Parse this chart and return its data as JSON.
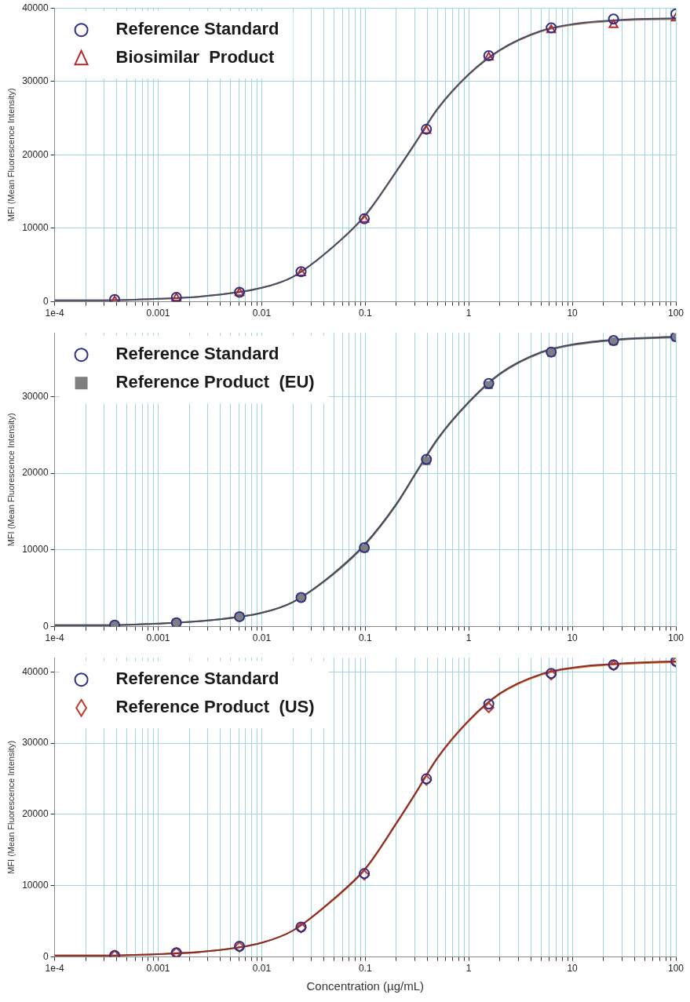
{
  "chart_data": [
    {
      "type": "scatter",
      "ylabel": "MFI (Mean Fluorescence Intensity)",
      "xlim": [
        0.0001,
        100
      ],
      "ylim": [
        0,
        40000
      ],
      "log": "x",
      "grid": true,
      "legend": "top left",
      "xticks": [
        {
          "value": 0.0001,
          "label": "1e-4"
        },
        {
          "value": 0.0002,
          "label": null
        },
        {
          "value": 0.0003,
          "label": null
        },
        {
          "value": 0.0004,
          "label": null
        },
        {
          "value": 0.0005,
          "label": null
        },
        {
          "value": 0.0006,
          "label": null
        },
        {
          "value": 0.0007,
          "label": null
        },
        {
          "value": 0.0008,
          "label": null
        },
        {
          "value": 0.0009,
          "label": null
        },
        0.001,
        {
          "value": 0.002,
          "label": null
        },
        {
          "value": 0.003,
          "label": null
        },
        {
          "value": 0.004,
          "label": null
        },
        {
          "value": 0.005,
          "label": null
        },
        {
          "value": 0.006,
          "label": null
        },
        {
          "value": 0.007,
          "label": null
        },
        {
          "value": 0.008,
          "label": null
        },
        {
          "value": 0.009,
          "label": null
        },
        0.01,
        {
          "value": 0.02,
          "label": null
        },
        {
          "value": 0.03,
          "label": null
        },
        {
          "value": 0.04,
          "label": null
        },
        {
          "value": 0.05,
          "label": null
        },
        {
          "value": 0.06,
          "label": null
        },
        {
          "value": 0.07,
          "label": null
        },
        {
          "value": 0.08,
          "label": null
        },
        {
          "value": 0.09,
          "label": null
        },
        0.1,
        {
          "value": 0.2,
          "label": null
        },
        {
          "value": 0.3,
          "label": null
        },
        {
          "value": 0.4,
          "label": null
        },
        {
          "value": 0.5,
          "label": null
        },
        {
          "value": 0.6,
          "label": null
        },
        {
          "value": 0.7,
          "label": null
        },
        {
          "value": 0.8,
          "label": null
        },
        {
          "value": 0.9,
          "label": null
        },
        1,
        {
          "value": 2,
          "label": null
        },
        {
          "value": 3,
          "label": null
        },
        {
          "value": 4,
          "label": null
        },
        {
          "value": 5,
          "label": null
        },
        {
          "value": 6,
          "label": null
        },
        {
          "value": 7,
          "label": null
        },
        {
          "value": 8,
          "label": null
        },
        {
          "value": 9,
          "label": null
        },
        10,
        {
          "value": 20,
          "label": null
        },
        {
          "value": 30,
          "label": null
        },
        {
          "value": 40,
          "label": null
        },
        {
          "value": 50,
          "label": null
        },
        {
          "value": 60,
          "label": null
        },
        {
          "value": 70,
          "label": null
        },
        {
          "value": 80,
          "label": null
        },
        {
          "value": 90,
          "label": null
        },
        100
      ],
      "yticks": [
        0,
        10000,
        20000,
        30000,
        40000
      ],
      "x": [
        0.00038,
        0.0015,
        0.0061,
        0.024,
        0.098,
        0.39,
        1.56,
        6.25,
        25,
        100
      ],
      "series": [
        {
          "type": "line",
          "color": "#4a4a6a",
          "marker": "none",
          "x": [
            0.0001,
            0.0003,
            0.001,
            0.003,
            0.01,
            0.02,
            0.05,
            0.1,
            0.2,
            0.3,
            0.5,
            1,
            2,
            5,
            10,
            30,
            100
          ],
          "values": [
            200,
            200,
            400,
            800,
            1900,
            3400,
            7600,
            11800,
            17800,
            21500,
            26300,
            31000,
            34300,
            36900,
            37800,
            38400,
            38600
          ]
        },
        {
          "type": "line",
          "color": "#b08a5a",
          "marker": "none",
          "x": [
            0.0001,
            0.0003,
            0.001,
            0.003,
            0.01,
            0.02,
            0.05,
            0.1,
            0.2,
            0.3,
            0.5,
            1,
            2,
            5,
            10,
            30,
            100
          ],
          "values": [
            200,
            200,
            400,
            800,
            1900,
            3400,
            7600,
            11700,
            17700,
            21400,
            26200,
            30900,
            34200,
            36800,
            37700,
            38300,
            38500
          ]
        },
        {
          "name": "Reference Standard",
          "color": "#2e2e8a",
          "marker": "circle",
          "values": [
            300,
            600,
            1300,
            4100,
            11300,
            23500,
            33500,
            37300,
            38500,
            39200
          ]
        },
        {
          "name": "Biosimilar  Product",
          "color": "#b5282a",
          "marker": "triangle",
          "values": [
            100,
            500,
            1200,
            3900,
            11200,
            23300,
            33300,
            37000,
            37700,
            38600
          ]
        }
      ]
    },
    {
      "type": "scatter",
      "ylabel": "MFI (Mean Fluorescence Intensity)",
      "xlim": [
        0.0001,
        100
      ],
      "ylim": [
        0,
        38300
      ],
      "log": "x",
      "grid": true,
      "legend": "top left",
      "xticks": [
        {
          "value": 0.0001,
          "label": "1e-4"
        },
        {
          "value": 0.0002,
          "label": null
        },
        {
          "value": 0.0003,
          "label": null
        },
        {
          "value": 0.0004,
          "label": null
        },
        {
          "value": 0.0005,
          "label": null
        },
        {
          "value": 0.0006,
          "label": null
        },
        {
          "value": 0.0007,
          "label": null
        },
        {
          "value": 0.0008,
          "label": null
        },
        {
          "value": 0.0009,
          "label": null
        },
        0.001,
        {
          "value": 0.002,
          "label": null
        },
        {
          "value": 0.003,
          "label": null
        },
        {
          "value": 0.004,
          "label": null
        },
        {
          "value": 0.005,
          "label": null
        },
        {
          "value": 0.006,
          "label": null
        },
        {
          "value": 0.007,
          "label": null
        },
        {
          "value": 0.008,
          "label": null
        },
        {
          "value": 0.009,
          "label": null
        },
        0.01,
        {
          "value": 0.02,
          "label": null
        },
        {
          "value": 0.03,
          "label": null
        },
        {
          "value": 0.04,
          "label": null
        },
        {
          "value": 0.05,
          "label": null
        },
        {
          "value": 0.06,
          "label": null
        },
        {
          "value": 0.07,
          "label": null
        },
        {
          "value": 0.08,
          "label": null
        },
        {
          "value": 0.09,
          "label": null
        },
        0.1,
        {
          "value": 0.2,
          "label": null
        },
        {
          "value": 0.3,
          "label": null
        },
        {
          "value": 0.4,
          "label": null
        },
        {
          "value": 0.5,
          "label": null
        },
        {
          "value": 0.6,
          "label": null
        },
        {
          "value": 0.7,
          "label": null
        },
        {
          "value": 0.8,
          "label": null
        },
        {
          "value": 0.9,
          "label": null
        },
        1,
        {
          "value": 2,
          "label": null
        },
        {
          "value": 3,
          "label": null
        },
        {
          "value": 4,
          "label": null
        },
        {
          "value": 5,
          "label": null
        },
        {
          "value": 6,
          "label": null
        },
        {
          "value": 7,
          "label": null
        },
        {
          "value": 8,
          "label": null
        },
        {
          "value": 9,
          "label": null
        },
        10,
        {
          "value": 20,
          "label": null
        },
        {
          "value": 30,
          "label": null
        },
        {
          "value": 40,
          "label": null
        },
        {
          "value": 50,
          "label": null
        },
        {
          "value": 60,
          "label": null
        },
        {
          "value": 70,
          "label": null
        },
        {
          "value": 80,
          "label": null
        },
        {
          "value": 90,
          "label": null
        },
        100
      ],
      "yticks": [
        0,
        10000,
        20000,
        30000
      ],
      "x": [
        0.00038,
        0.0015,
        0.0061,
        0.024,
        0.098,
        0.39,
        1.56,
        6.25,
        25,
        100
      ],
      "series": [
        {
          "type": "line",
          "color": "#4a4a5a",
          "marker": "none",
          "x": [
            0.0001,
            0.0003,
            0.001,
            0.003,
            0.01,
            0.02,
            0.05,
            0.1,
            0.2,
            0.3,
            0.5,
            1,
            2,
            5,
            10,
            30,
            100
          ],
          "values": [
            200,
            200,
            400,
            800,
            1800,
            3200,
            7000,
            10800,
            16000,
            19800,
            24500,
            29300,
            33000,
            35800,
            36800,
            37500,
            37800
          ]
        },
        {
          "type": "line",
          "color": "#707070",
          "marker": "none",
          "x": [
            0.0001,
            0.0003,
            0.001,
            0.003,
            0.01,
            0.02,
            0.05,
            0.1,
            0.2,
            0.3,
            0.5,
            1,
            2,
            5,
            10,
            30,
            100
          ],
          "values": [
            200,
            200,
            400,
            800,
            1800,
            3200,
            6900,
            10700,
            15900,
            19700,
            24400,
            29200,
            32900,
            35700,
            36700,
            37400,
            37700
          ]
        },
        {
          "name": "Reference Standard",
          "color": "#2e2e8a",
          "marker": "circle",
          "values": [
            200,
            500,
            1300,
            3800,
            10300,
            21800,
            31700,
            35800,
            37300,
            37800
          ]
        },
        {
          "name": "Reference Product  (EU)",
          "color": "#7f7f7f",
          "marker": "square",
          "values": [
            200,
            500,
            1300,
            3800,
            10200,
            21600,
            31500,
            35700,
            37200,
            37700
          ]
        }
      ]
    },
    {
      "type": "scatter",
      "xlabel": "Concentration (µg/mL)",
      "ylabel": "MFI (Mean Fluorescence Intensity)",
      "xlim": [
        0.0001,
        100
      ],
      "ylim": [
        0,
        42000
      ],
      "log": "x",
      "grid": true,
      "legend": "top left",
      "xticks": [
        {
          "value": 0.0001,
          "label": "1e-4"
        },
        {
          "value": 0.0002,
          "label": null
        },
        {
          "value": 0.0003,
          "label": null
        },
        {
          "value": 0.0004,
          "label": null
        },
        {
          "value": 0.0005,
          "label": null
        },
        {
          "value": 0.0006,
          "label": null
        },
        {
          "value": 0.0007,
          "label": null
        },
        {
          "value": 0.0008,
          "label": null
        },
        {
          "value": 0.0009,
          "label": null
        },
        0.001,
        {
          "value": 0.002,
          "label": null
        },
        {
          "value": 0.003,
          "label": null
        },
        {
          "value": 0.004,
          "label": null
        },
        {
          "value": 0.005,
          "label": null
        },
        {
          "value": 0.006,
          "label": null
        },
        {
          "value": 0.007,
          "label": null
        },
        {
          "value": 0.008,
          "label": null
        },
        {
          "value": 0.009,
          "label": null
        },
        0.01,
        {
          "value": 0.02,
          "label": null
        },
        {
          "value": 0.03,
          "label": null
        },
        {
          "value": 0.04,
          "label": null
        },
        {
          "value": 0.05,
          "label": null
        },
        {
          "value": 0.06,
          "label": null
        },
        {
          "value": 0.07,
          "label": null
        },
        {
          "value": 0.08,
          "label": null
        },
        {
          "value": 0.09,
          "label": null
        },
        0.1,
        {
          "value": 0.2,
          "label": null
        },
        {
          "value": 0.3,
          "label": null
        },
        {
          "value": 0.4,
          "label": null
        },
        {
          "value": 0.5,
          "label": null
        },
        {
          "value": 0.6,
          "label": null
        },
        {
          "value": 0.7,
          "label": null
        },
        {
          "value": 0.8,
          "label": null
        },
        {
          "value": 0.9,
          "label": null
        },
        1,
        {
          "value": 2,
          "label": null
        },
        {
          "value": 3,
          "label": null
        },
        {
          "value": 4,
          "label": null
        },
        {
          "value": 5,
          "label": null
        },
        {
          "value": 6,
          "label": null
        },
        {
          "value": 7,
          "label": null
        },
        {
          "value": 8,
          "label": null
        },
        {
          "value": 9,
          "label": null
        },
        10,
        {
          "value": 20,
          "label": null
        },
        {
          "value": 30,
          "label": null
        },
        {
          "value": 40,
          "label": null
        },
        {
          "value": 50,
          "label": null
        },
        {
          "value": 60,
          "label": null
        },
        {
          "value": 70,
          "label": null
        },
        {
          "value": 80,
          "label": null
        },
        {
          "value": 90,
          "label": null
        },
        100
      ],
      "yticks": [
        0,
        10000,
        20000,
        30000,
        40000
      ],
      "x": [
        0.00038,
        0.0015,
        0.0061,
        0.024,
        0.098,
        0.39,
        1.56,
        6.25,
        25,
        100
      ],
      "series": [
        {
          "type": "line",
          "color": "#8b2a2a",
          "marker": "none",
          "x": [
            0.0001,
            0.0003,
            0.001,
            0.003,
            0.01,
            0.02,
            0.05,
            0.1,
            0.2,
            0.3,
            0.5,
            1,
            2,
            5,
            10,
            30,
            100
          ],
          "values": [
            200,
            200,
            400,
            800,
            2000,
            3700,
            8200,
            12400,
            18800,
            22800,
            28000,
            33200,
            37000,
            39700,
            40600,
            41200,
            41500
          ]
        },
        {
          "type": "line",
          "color": "#d2782e",
          "marker": "none",
          "x": [
            0.0001,
            0.0003,
            0.001,
            0.003,
            0.01,
            0.02,
            0.05,
            0.1,
            0.2,
            0.3,
            0.5,
            1,
            2,
            5,
            10,
            30,
            100
          ],
          "values": [
            200,
            200,
            400,
            800,
            2000,
            3700,
            8100,
            12300,
            18700,
            22700,
            27900,
            33100,
            36900,
            39600,
            40500,
            41100,
            41400
          ]
        },
        {
          "name": "Reference Standard",
          "color": "#2e2e8a",
          "marker": "circle",
          "values": [
            200,
            600,
            1500,
            4200,
            11700,
            25000,
            35500,
            39800,
            41000,
            41500
          ]
        },
        {
          "name": "Reference Product  (US)",
          "color": "#c0392b",
          "marker": "diamond",
          "values": [
            200,
            600,
            1400,
            4100,
            11500,
            24800,
            35000,
            39600,
            40900,
            41400
          ]
        }
      ]
    }
  ]
}
